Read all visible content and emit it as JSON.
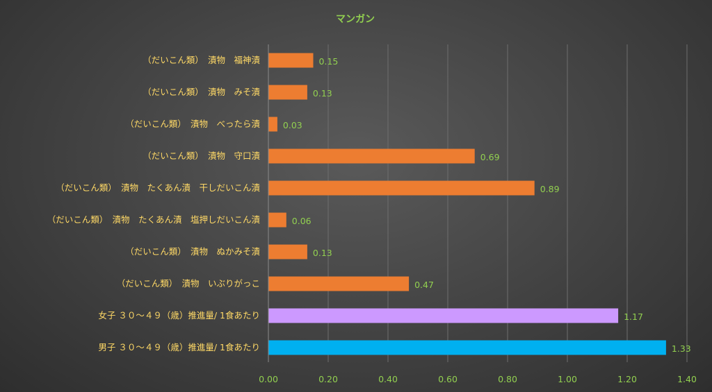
{
  "chart_data": {
    "type": "bar",
    "orientation": "horizontal",
    "title": "マンガン",
    "xlabel": "",
    "ylabel": "",
    "xlim": [
      0,
      1.4
    ],
    "x_ticks": [
      "0.00",
      "0.20",
      "0.40",
      "0.60",
      "0.80",
      "1.00",
      "1.20",
      "1.40"
    ],
    "grid": true,
    "legend": "none",
    "categories": [
      "（だいこん類）　漬物　福神漬",
      "（だいこん類）　漬物　みそ漬",
      "（だいこん類）　漬物　べったら漬",
      "（だいこん類）　漬物　守口漬",
      "（だいこん類）　漬物　たくあん漬　干しだいこん漬",
      "（だいこん類）　漬物　たくあん漬　塩押しだいこん漬",
      "（だいこん類）　漬物　ぬかみそ漬",
      "（だいこん類）　漬物　いぶりがっこ",
      "女子 ３０～４９（歳）推進量/ 1食あたり",
      "男子 ３０～４９（歳）推進量/ 1食あたり"
    ],
    "values": [
      0.15,
      0.13,
      0.03,
      0.69,
      0.89,
      0.06,
      0.13,
      0.47,
      1.17,
      1.33
    ],
    "value_labels": [
      "0.15",
      "0.13",
      "0.03",
      "0.69",
      "0.89",
      "0.06",
      "0.13",
      "0.47",
      "1.17",
      "1.33"
    ],
    "bar_colors": [
      "#ed7d31",
      "#ed7d31",
      "#ed7d31",
      "#ed7d31",
      "#ed7d31",
      "#ed7d31",
      "#ed7d31",
      "#ed7d31",
      "#cc99ff",
      "#00b0f0"
    ]
  }
}
